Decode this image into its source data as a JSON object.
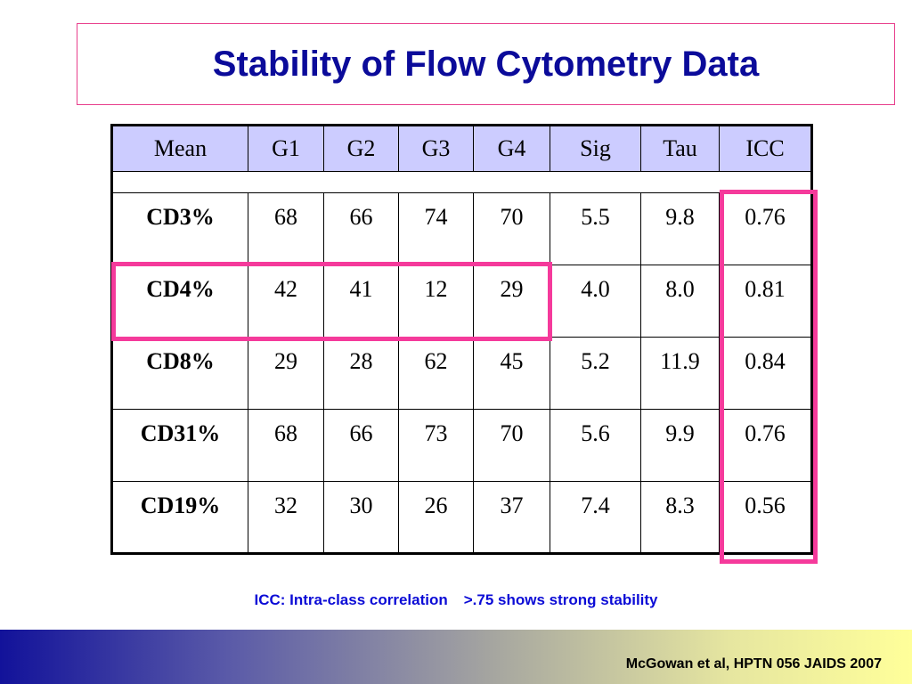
{
  "title": "Stability of Flow Cytometry Data",
  "table": {
    "headers": [
      "Mean",
      "G1",
      "G2",
      "G3",
      "G4",
      "Sig",
      "Tau",
      "ICC"
    ],
    "rows": [
      {
        "label": "CD3%",
        "values": [
          "68",
          "66",
          "74",
          "70",
          "5.5",
          "9.8",
          "0.76"
        ]
      },
      {
        "label": "CD4%",
        "values": [
          "42",
          "41",
          "12",
          "29",
          "4.0",
          "8.0",
          "0.81"
        ]
      },
      {
        "label": "CD8%",
        "values": [
          "29",
          "28",
          "62",
          "45",
          "5.2",
          "11.9",
          "0.84"
        ]
      },
      {
        "label": "CD31%",
        "values": [
          "68",
          "66",
          "73",
          "70",
          "5.6",
          "9.9",
          "0.76"
        ]
      },
      {
        "label": "CD19%",
        "values": [
          "32",
          "30",
          "26",
          "37",
          "7.4",
          "8.3",
          "0.56"
        ]
      }
    ]
  },
  "note": {
    "definition": "ICC: Intra-class correlation",
    "threshold": ">.75 shows strong stability"
  },
  "citation": "McGowan et al, HPTN 056  JAIDS 2007",
  "colors": {
    "title": "#0b0b9a",
    "header_fill": "#ccccff",
    "highlight": "#f53a9b",
    "note": "#0b0bd6"
  }
}
